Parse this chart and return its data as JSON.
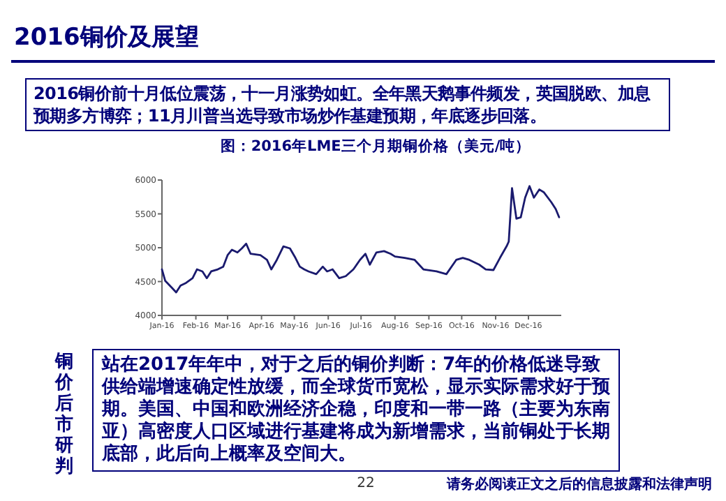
{
  "chart_data": {
    "type": "line",
    "title": "图：2016年LME三个月期铜价格（美元/吨）",
    "x": [
      "2016-01-01",
      "2016-01-04",
      "2016-01-10",
      "2016-01-14",
      "2016-01-18",
      "2016-01-23",
      "2016-01-29",
      "2016-02-02",
      "2016-02-07",
      "2016-02-11",
      "2016-02-15",
      "2016-02-21",
      "2016-02-26",
      "2016-03-01",
      "2016-03-05",
      "2016-03-10",
      "2016-03-14",
      "2016-03-18",
      "2016-03-22",
      "2016-03-31",
      "2016-04-06",
      "2016-04-10",
      "2016-04-15",
      "2016-04-21",
      "2016-04-27",
      "2016-05-02",
      "2016-05-06",
      "2016-05-10",
      "2016-05-14",
      "2016-05-21",
      "2016-05-27",
      "2016-05-31",
      "2016-06-05",
      "2016-06-11",
      "2016-06-17",
      "2016-06-24",
      "2016-06-30",
      "2016-07-05",
      "2016-07-09",
      "2016-07-15",
      "2016-07-22",
      "2016-07-28",
      "2016-08-01",
      "2016-08-10",
      "2016-08-19",
      "2016-08-27",
      "2016-09-08",
      "2016-09-17",
      "2016-09-26",
      "2016-10-02",
      "2016-10-08",
      "2016-10-17",
      "2016-10-23",
      "2016-10-30",
      "2016-11-05",
      "2016-11-11",
      "2016-11-13",
      "2016-11-16",
      "2016-11-20",
      "2016-11-24",
      "2016-11-28",
      "2016-12-02",
      "2016-12-06",
      "2016-12-11",
      "2016-12-15",
      "2016-12-22",
      "2016-12-26",
      "2016-12-29"
    ],
    "series": [
      {
        "color": "#1a1a6e",
        "values": [
          4680,
          4510,
          4410,
          4340,
          4440,
          4480,
          4550,
          4680,
          4650,
          4550,
          4650,
          4680,
          4720,
          4890,
          4970,
          4930,
          4990,
          5060,
          4910,
          4890,
          4820,
          4680,
          4820,
          5020,
          4990,
          4850,
          4720,
          4680,
          4650,
          4610,
          4720,
          4650,
          4680,
          4550,
          4580,
          4680,
          4820,
          4910,
          4750,
          4930,
          4950,
          4910,
          4870,
          4850,
          4820,
          4680,
          4650,
          4610,
          4820,
          4850,
          4820,
          4750,
          4680,
          4670,
          4850,
          5020,
          5090,
          5880,
          5430,
          5450,
          5740,
          5910,
          5740,
          5860,
          5820,
          5670,
          5570,
          5450
        ]
      }
    ],
    "ylim": [
      4000,
      6000
    ],
    "yticks": [
      4000,
      4500,
      5000,
      5500,
      6000
    ],
    "xlim": [
      "2016-01-01",
      "2016-12-31"
    ],
    "xticks": [
      {
        "value": "2016-01-01",
        "label": "Jan-16"
      },
      {
        "value": "2016-02-01",
        "label": "Feb-16"
      },
      {
        "value": "2016-03-01",
        "label": "Mar-16"
      },
      {
        "value": "2016-04-01",
        "label": "Apr-16"
      },
      {
        "value": "2016-05-01",
        "label": "May-16"
      },
      {
        "value": "2016-06-01",
        "label": "Jun-16"
      },
      {
        "value": "2016-07-01",
        "label": "Jul-16"
      },
      {
        "value": "2016-08-01",
        "label": "Aug-16"
      },
      {
        "value": "2016-09-01",
        "label": "Sep-16"
      },
      {
        "value": "2016-10-01",
        "label": "Oct-16"
      },
      {
        "value": "2016-11-01",
        "label": "Nov-16"
      },
      {
        "value": "2016-12-01",
        "label": "Dec-16"
      }
    ],
    "grid": false,
    "marker": "none",
    "line_style": "solid",
    "annotations": [
      "2016铜价及展望",
      "2016铜价前十月低位震荡，十一月涨势如虹。全年黑天鹅事件频发，英国脱欧、加息预期多方博弈；11月川普当选导致市场炒作基建预期，年底逐步回落。",
      "铜价后市研判",
      "站在2017年年中，对于之后的铜价判断：7年的价格低迷导致供给端增速确定性放缓，而全球货币宽松，显示实际需求好于预期。美国、中国和欧洲经济企稳，印度和一带一路（主要为东南亚）高密度人口区域进行基建将成为新增需求，当前铜处于长期底部，此后向上概率及空间大。",
      "22",
      "请务必阅读正文之后的信息披露和法律声明"
    ]
  }
}
